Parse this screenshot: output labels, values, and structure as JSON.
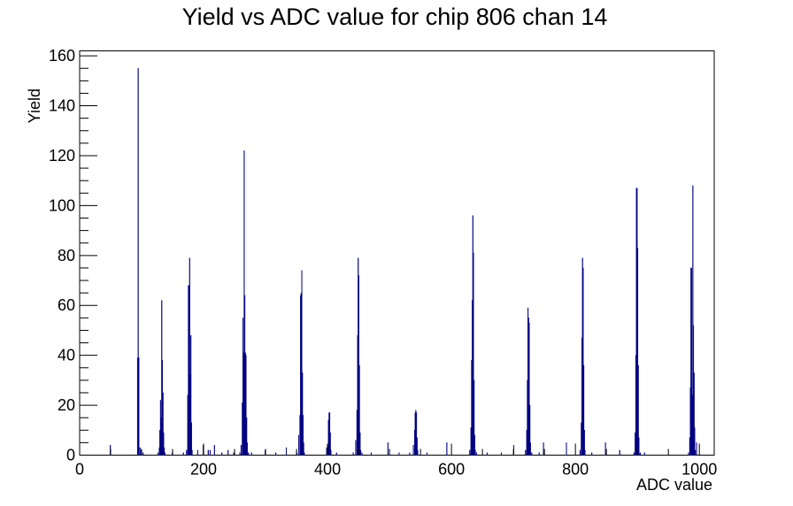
{
  "chart_data": {
    "type": "histogram",
    "title": "Yield vs ADC value for chip 806 chan 14",
    "xlabel": "ADC value",
    "ylabel": "Yield",
    "xlim": [
      0,
      1024
    ],
    "ylim": [
      0,
      162
    ],
    "x_ticks": [
      0,
      200,
      400,
      600,
      800,
      1000
    ],
    "x_tick_labels": [
      "0",
      "200",
      "400",
      "600",
      "800",
      "1000"
    ],
    "y_ticks": [
      0,
      20,
      40,
      60,
      80,
      100,
      120,
      140,
      160
    ],
    "y_tick_labels": [
      "0",
      "20",
      "40",
      "60",
      "80",
      "100",
      "120",
      "140",
      "160"
    ],
    "grid": false,
    "legend": "none",
    "series_color": "#000080",
    "bin_width": 1,
    "bins": [
      [
        49,
        4
      ],
      [
        93,
        39
      ],
      [
        94,
        155
      ],
      [
        95,
        39
      ],
      [
        97,
        3
      ],
      [
        99,
        2
      ],
      [
        102,
        1
      ],
      [
        126,
        1
      ],
      [
        128,
        3
      ],
      [
        129,
        10
      ],
      [
        130,
        22
      ],
      [
        131,
        15
      ],
      [
        132,
        62
      ],
      [
        133,
        38
      ],
      [
        134,
        25
      ],
      [
        135,
        9
      ],
      [
        136,
        3
      ],
      [
        137,
        1
      ],
      [
        149,
        1
      ],
      [
        167,
        1
      ],
      [
        172,
        2
      ],
      [
        174,
        24
      ],
      [
        175,
        68
      ],
      [
        176,
        68
      ],
      [
        177,
        79
      ],
      [
        178,
        32
      ],
      [
        179,
        48
      ],
      [
        180,
        13
      ],
      [
        181,
        2
      ],
      [
        190,
        2
      ],
      [
        199,
        4
      ],
      [
        207,
        2
      ],
      [
        210,
        2
      ],
      [
        217,
        4
      ],
      [
        229,
        1
      ],
      [
        239,
        2
      ],
      [
        248,
        1
      ],
      [
        258,
        1
      ],
      [
        260,
        4
      ],
      [
        262,
        21
      ],
      [
        263,
        55
      ],
      [
        264,
        41
      ],
      [
        265,
        122
      ],
      [
        266,
        64
      ],
      [
        267,
        41
      ],
      [
        268,
        40
      ],
      [
        269,
        15
      ],
      [
        270,
        5
      ],
      [
        272,
        1
      ],
      [
        277,
        1
      ],
      [
        299,
        2
      ],
      [
        316,
        1
      ],
      [
        333,
        3
      ],
      [
        350,
        1
      ],
      [
        353,
        8
      ],
      [
        355,
        16
      ],
      [
        356,
        64
      ],
      [
        357,
        65
      ],
      [
        358,
        74
      ],
      [
        359,
        33
      ],
      [
        360,
        16
      ],
      [
        361,
        5
      ],
      [
        362,
        1
      ],
      [
        398,
        3
      ],
      [
        400,
        4
      ],
      [
        401,
        14
      ],
      [
        402,
        17
      ],
      [
        403,
        17
      ],
      [
        404,
        9
      ],
      [
        405,
        2
      ],
      [
        414,
        1
      ],
      [
        441,
        1
      ],
      [
        445,
        6
      ],
      [
        447,
        18
      ],
      [
        448,
        48
      ],
      [
        449,
        79
      ],
      [
        450,
        72
      ],
      [
        451,
        36
      ],
      [
        452,
        9
      ],
      [
        453,
        2
      ],
      [
        455,
        1
      ],
      [
        470,
        1
      ],
      [
        497,
        5
      ],
      [
        515,
        1
      ],
      [
        532,
        1
      ],
      [
        538,
        4
      ],
      [
        540,
        10
      ],
      [
        541,
        17
      ],
      [
        542,
        18
      ],
      [
        543,
        17
      ],
      [
        544,
        7
      ],
      [
        545,
        2
      ],
      [
        560,
        1
      ],
      [
        592,
        5
      ],
      [
        629,
        2
      ],
      [
        631,
        11
      ],
      [
        632,
        38
      ],
      [
        633,
        62
      ],
      [
        634,
        96
      ],
      [
        635,
        81
      ],
      [
        636,
        30
      ],
      [
        637,
        8
      ],
      [
        638,
        2
      ],
      [
        640,
        1
      ],
      [
        657,
        1
      ],
      [
        680,
        1
      ],
      [
        700,
        4
      ],
      [
        719,
        2
      ],
      [
        721,
        10
      ],
      [
        722,
        30
      ],
      [
        723,
        59
      ],
      [
        724,
        55
      ],
      [
        725,
        53
      ],
      [
        726,
        20
      ],
      [
        727,
        5
      ],
      [
        729,
        1
      ],
      [
        741,
        1
      ],
      [
        748,
        5
      ],
      [
        785,
        5
      ],
      [
        807,
        2
      ],
      [
        809,
        13
      ],
      [
        810,
        47
      ],
      [
        811,
        79
      ],
      [
        812,
        75
      ],
      [
        813,
        36
      ],
      [
        814,
        10
      ],
      [
        815,
        2
      ],
      [
        826,
        1
      ],
      [
        848,
        5
      ],
      [
        871,
        2
      ],
      [
        894,
        1
      ],
      [
        896,
        9
      ],
      [
        897,
        40
      ],
      [
        898,
        107
      ],
      [
        899,
        107
      ],
      [
        900,
        83
      ],
      [
        901,
        36
      ],
      [
        902,
        7
      ],
      [
        904,
        1
      ],
      [
        911,
        1
      ],
      [
        982,
        1
      ],
      [
        984,
        7
      ],
      [
        985,
        27
      ],
      [
        986,
        75
      ],
      [
        987,
        75
      ],
      [
        988,
        24
      ],
      [
        989,
        108
      ],
      [
        990,
        52
      ],
      [
        991,
        33
      ],
      [
        992,
        11
      ],
      [
        993,
        2
      ],
      [
        995,
        5
      ]
    ]
  }
}
